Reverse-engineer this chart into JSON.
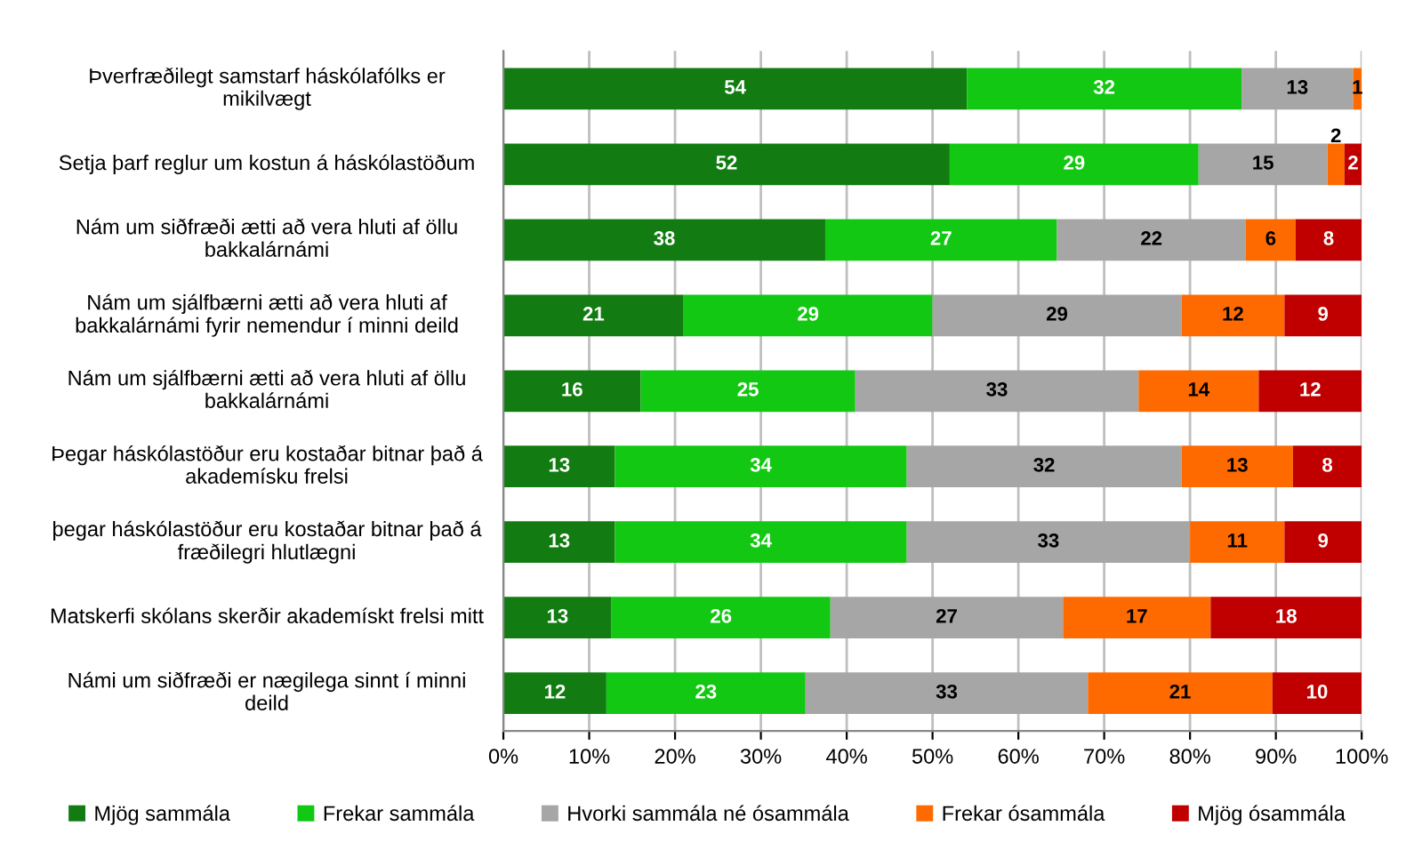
{
  "chart_data": {
    "type": "bar",
    "orientation": "horizontal",
    "stacked": true,
    "categories": [
      "Þverfræðilegt samstarf háskólafólks er mikilvægt",
      "Setja þarf reglur um kostun á háskólastöðum",
      "Nám um siðfræði ætti að vera hluti af öllu bakkalárnámi",
      "Nám um sjálfbærni ætti að vera hluti af bakkalárnámi fyrir nemendur í minni deild",
      "Nám um sjálfbærni ætti að vera hluti af öllu bakkalárnámi",
      "Þegar háskólastöður eru kostaðar bitnar það á akademísku frelsi",
      "þegar háskólastöður eru kostaðar bitnar það á fræðilegri hlutlægni",
      "Matskerfi skólans skerðir akademískt frelsi mitt",
      "Námi um siðfræði er nægilega sinnt í minni deild"
    ],
    "series": [
      {
        "name": "Mjög sammála",
        "color": "#127c12",
        "values": [
          54,
          52,
          37.5,
          21,
          16,
          13,
          13,
          12.6,
          12
        ],
        "value_labels": [
          "54",
          "52",
          "38",
          "21",
          "16",
          "13",
          "13",
          "13",
          "12"
        ]
      },
      {
        "name": "Frekar sammála",
        "color": "#12c812",
        "values": [
          32,
          29,
          27,
          29,
          25,
          34,
          34,
          25.5,
          23.2
        ],
        "value_labels": [
          "32",
          "29",
          "27",
          "29",
          "25",
          "34",
          "34",
          "26",
          "23"
        ]
      },
      {
        "name": "Hvorki sammála né ósammála",
        "color": "#a6a6a6",
        "values": [
          13,
          15,
          22,
          29,
          33,
          32,
          33,
          27.1,
          32.9
        ],
        "value_labels": [
          "13",
          "15",
          "22",
          "29",
          "33",
          "32",
          "33",
          "27",
          "33"
        ]
      },
      {
        "name": "Frekar ósammála",
        "color": "#ff6a00",
        "values": [
          1,
          2,
          5.8,
          12,
          14,
          13,
          11,
          17.2,
          21.5
        ],
        "value_labels": [
          "1",
          "2",
          "6",
          "12",
          "14",
          "13",
          "11",
          "17",
          "21"
        ]
      },
      {
        "name": "Mjög ósammála",
        "color": "#c00000",
        "values": [
          0,
          2,
          7.7,
          9,
          12,
          8,
          9,
          17.6,
          10.4
        ],
        "value_labels": [
          null,
          "2",
          "8",
          "9",
          "12",
          "8",
          "9",
          "18",
          "10"
        ]
      }
    ],
    "xlim": [
      0,
      100
    ],
    "xticks": [
      {
        "value": 0,
        "label": "0%"
      },
      {
        "value": 10,
        "label": "10%"
      },
      {
        "value": 20,
        "label": "20%"
      },
      {
        "value": 30,
        "label": "30%"
      },
      {
        "value": 40,
        "label": "40%"
      },
      {
        "value": 50,
        "label": "50%"
      },
      {
        "value": 60,
        "label": "60%"
      },
      {
        "value": 70,
        "label": "70%"
      },
      {
        "value": 80,
        "label": "80%"
      },
      {
        "value": 90,
        "label": "90%"
      },
      {
        "value": 100,
        "label": "100%"
      }
    ],
    "grid": "x",
    "legend": "bottom"
  }
}
